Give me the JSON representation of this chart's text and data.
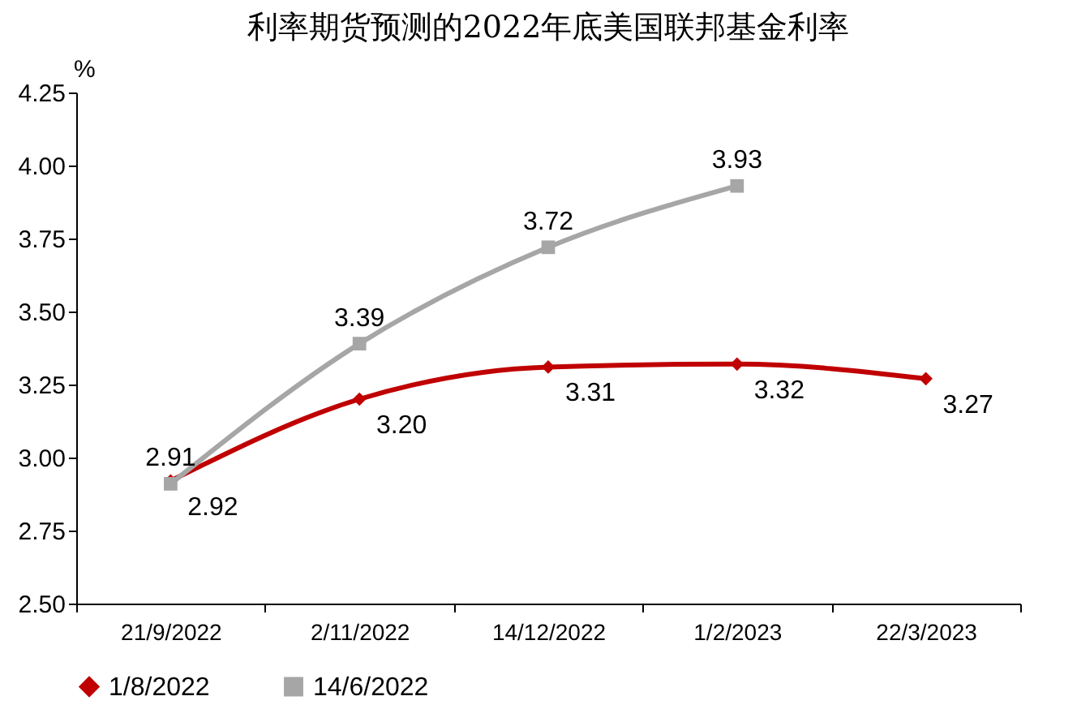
{
  "chart_data": {
    "type": "line",
    "title": "利率期货预测的2022年底美国联邦基金利率",
    "ylabel": "%",
    "categories": [
      "21/9/2022",
      "2/11/2022",
      "14/12/2022",
      "1/2/2023",
      "22/3/2023"
    ],
    "series": [
      {
        "name": "1/8/2022",
        "color": "#c00000",
        "marker": "diamond",
        "values": [
          2.92,
          3.2,
          3.31,
          3.32,
          3.27
        ],
        "value_labels": [
          "2.92",
          "3.20",
          "3.31",
          "3.32",
          "3.27"
        ]
      },
      {
        "name": "14/6/2022",
        "color": "#a6a6a6",
        "marker": "square",
        "values": [
          2.91,
          3.39,
          3.72,
          3.93,
          null
        ],
        "value_labels": [
          "2.91",
          "3.39",
          "3.72",
          "3.93",
          null
        ]
      }
    ],
    "ylim": [
      2.5,
      4.25
    ],
    "yticks": [
      {
        "value": 2.5,
        "label": "2.50"
      },
      {
        "value": 2.75,
        "label": "2.75"
      },
      {
        "value": 3.0,
        "label": "3.00"
      },
      {
        "value": 3.25,
        "label": "3.25"
      },
      {
        "value": 3.5,
        "label": "3.50"
      },
      {
        "value": 3.75,
        "label": "3.75"
      },
      {
        "value": 4.0,
        "label": "4.00"
      },
      {
        "value": 4.25,
        "label": "4.25"
      }
    ],
    "grid": false,
    "legend": "bottom",
    "line_style": "solid"
  }
}
